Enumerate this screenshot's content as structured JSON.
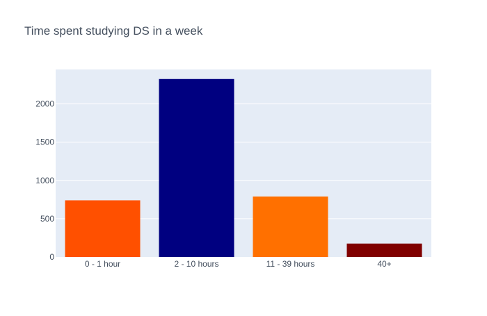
{
  "chart_data": {
    "type": "bar",
    "title": "Time spent studying DS in a week",
    "xlabel": "",
    "ylabel": "",
    "categories": [
      "0 - 1 hour",
      "2 - 10 hours",
      "11 - 39 hours",
      "40+"
    ],
    "values": [
      740,
      2325,
      790,
      175
    ],
    "bar_colors": [
      "#ff5000",
      "#000080",
      "#ff7000",
      "#800000"
    ],
    "ylim": [
      0,
      2450
    ],
    "yticks": [
      0,
      500,
      1000,
      1500,
      2000
    ],
    "grid": true,
    "legend": "none",
    "plot_background": "#e5ecf6"
  }
}
